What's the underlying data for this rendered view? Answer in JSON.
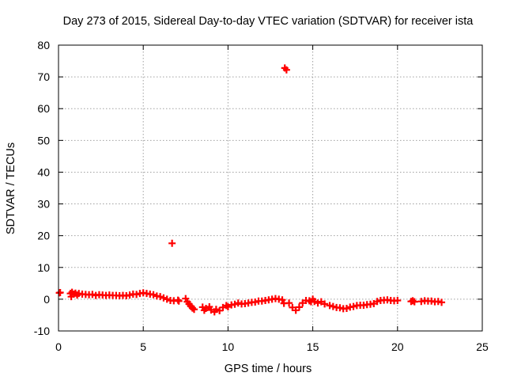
{
  "chart_data": {
    "type": "scatter",
    "title": "Day 273 of 2015, Sidereal Day-to-day VTEC variation (SDTVAR) for receiver ista",
    "xlabel": "GPS time / hours",
    "ylabel": "SDTVAR / TECUs",
    "xlim": [
      0,
      25
    ],
    "ylim": [
      -10,
      80
    ],
    "x_ticks": [
      0,
      5,
      10,
      15,
      20,
      25
    ],
    "y_ticks": [
      -10,
      0,
      10,
      20,
      30,
      40,
      50,
      60,
      70,
      80
    ],
    "x_tick_labels": [
      "0",
      "5",
      "10",
      "15",
      "20",
      "25"
    ],
    "y_tick_labels": [
      "-10",
      "0",
      "10",
      "20",
      "30",
      "40",
      "50",
      "60",
      "70",
      "80"
    ],
    "grid": true,
    "marker": "plus",
    "colors": {
      "series": "#ff0000",
      "grid": "#a0a0a0",
      "axis": "#000000"
    },
    "series": [
      {
        "name": "SDTVAR",
        "points": [
          [
            0.05,
            2.0
          ],
          [
            0.1,
            2.1
          ],
          [
            0.7,
            1.8
          ],
          [
            0.75,
            0.8
          ],
          [
            0.8,
            2.2
          ],
          [
            0.9,
            1.6
          ],
          [
            1.0,
            1.9
          ],
          [
            1.1,
            1.3
          ],
          [
            1.2,
            1.8
          ],
          [
            1.4,
            1.6
          ],
          [
            1.6,
            1.5
          ],
          [
            1.8,
            1.4
          ],
          [
            2.0,
            1.5
          ],
          [
            2.2,
            1.2
          ],
          [
            2.4,
            1.4
          ],
          [
            2.6,
            1.3
          ],
          [
            2.8,
            1.2
          ],
          [
            3.0,
            1.3
          ],
          [
            3.2,
            1.2
          ],
          [
            3.4,
            1.2
          ],
          [
            3.6,
            1.1
          ],
          [
            3.8,
            1.2
          ],
          [
            4.0,
            1.1
          ],
          [
            4.2,
            1.3
          ],
          [
            4.4,
            1.6
          ],
          [
            4.6,
            1.5
          ],
          [
            4.8,
            1.8
          ],
          [
            5.0,
            2.0
          ],
          [
            5.2,
            1.8
          ],
          [
            5.4,
            1.6
          ],
          [
            5.6,
            1.4
          ],
          [
            5.8,
            1.0
          ],
          [
            6.0,
            0.8
          ],
          [
            6.2,
            0.4
          ],
          [
            6.4,
            0.0
          ],
          [
            6.6,
            -0.4
          ],
          [
            6.8,
            -0.5
          ],
          [
            7.05,
            -0.3
          ],
          [
            7.1,
            -0.6
          ],
          [
            6.7,
            17.6
          ],
          [
            7.5,
            0.2
          ],
          [
            7.6,
            -0.8
          ],
          [
            7.7,
            -1.5
          ],
          [
            7.8,
            -2.2
          ],
          [
            7.9,
            -2.8
          ],
          [
            8.0,
            -3.2
          ],
          [
            8.5,
            -2.5
          ],
          [
            8.6,
            -3.5
          ],
          [
            8.7,
            -2.9
          ],
          [
            8.9,
            -2.4
          ],
          [
            9.0,
            -3.4
          ],
          [
            9.2,
            -4.0
          ],
          [
            9.3,
            -3.2
          ],
          [
            9.5,
            -3.6
          ],
          [
            9.7,
            -2.6
          ],
          [
            9.9,
            -2.0
          ],
          [
            10.0,
            -2.4
          ],
          [
            10.2,
            -1.8
          ],
          [
            10.4,
            -1.6
          ],
          [
            10.6,
            -1.2
          ],
          [
            10.8,
            -1.5
          ],
          [
            11.0,
            -1.4
          ],
          [
            11.2,
            -1.2
          ],
          [
            11.4,
            -1.0
          ],
          [
            11.6,
            -0.9
          ],
          [
            11.8,
            -0.6
          ],
          [
            12.0,
            -0.6
          ],
          [
            12.2,
            -0.4
          ],
          [
            12.4,
            -0.2
          ],
          [
            12.6,
            0.0
          ],
          [
            12.8,
            0.2
          ],
          [
            13.0,
            0.0
          ],
          [
            13.2,
            -0.2
          ],
          [
            13.3,
            -1.3
          ],
          [
            13.35,
            72.8
          ],
          [
            13.45,
            72.2
          ],
          [
            13.6,
            -1.2
          ],
          [
            13.8,
            -2.6
          ],
          [
            14.0,
            -3.5
          ],
          [
            14.2,
            -2.5
          ],
          [
            14.4,
            -1.2
          ],
          [
            14.6,
            -0.4
          ],
          [
            14.8,
            -0.5
          ],
          [
            14.9,
            -0.8
          ],
          [
            15.0,
            0.0
          ],
          [
            15.1,
            -0.7
          ],
          [
            15.3,
            -1.2
          ],
          [
            15.5,
            -0.8
          ],
          [
            15.7,
            -1.5
          ],
          [
            16.0,
            -2.0
          ],
          [
            16.2,
            -2.3
          ],
          [
            16.4,
            -2.6
          ],
          [
            16.6,
            -2.7
          ],
          [
            16.8,
            -3.0
          ],
          [
            17.0,
            -2.9
          ],
          [
            17.2,
            -2.5
          ],
          [
            17.4,
            -2.3
          ],
          [
            17.6,
            -2.0
          ],
          [
            17.8,
            -1.9
          ],
          [
            18.0,
            -1.9
          ],
          [
            18.2,
            -1.7
          ],
          [
            18.4,
            -1.6
          ],
          [
            18.6,
            -1.4
          ],
          [
            18.8,
            -0.7
          ],
          [
            19.0,
            -0.4
          ],
          [
            19.2,
            -0.3
          ],
          [
            19.4,
            -0.2
          ],
          [
            19.6,
            -0.4
          ],
          [
            19.8,
            -0.5
          ],
          [
            20.0,
            -0.4
          ],
          [
            20.8,
            -0.7
          ],
          [
            20.9,
            -0.5
          ],
          [
            21.0,
            -0.8
          ],
          [
            21.4,
            -0.7
          ],
          [
            21.6,
            -0.5
          ],
          [
            21.8,
            -0.6
          ],
          [
            22.0,
            -0.6
          ],
          [
            22.2,
            -0.8
          ],
          [
            22.4,
            -0.7
          ],
          [
            22.6,
            -1.0
          ]
        ]
      }
    ]
  }
}
